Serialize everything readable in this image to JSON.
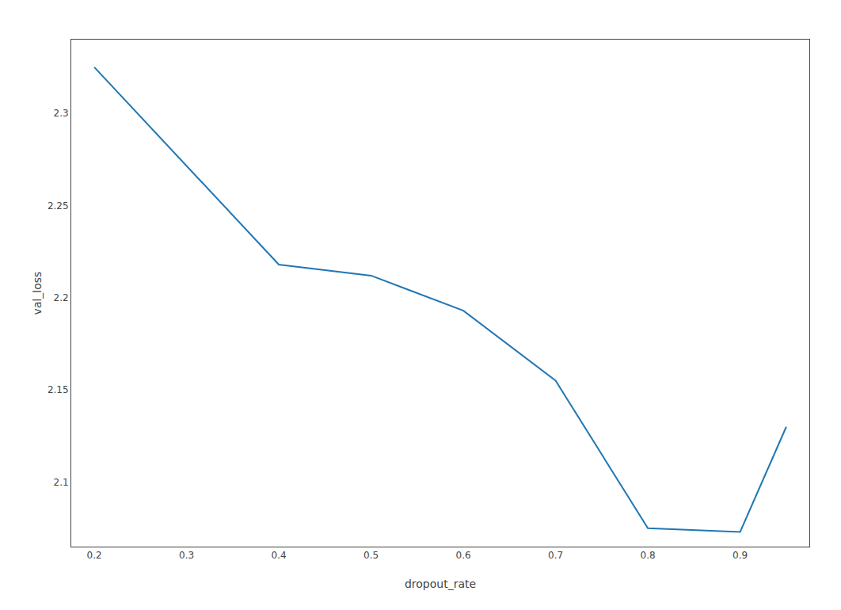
{
  "chart_data": {
    "type": "line",
    "x": [
      0.2,
      0.4,
      0.5,
      0.6,
      0.7,
      0.8,
      0.9,
      0.95
    ],
    "values": [
      2.325,
      2.218,
      2.212,
      2.193,
      2.155,
      2.075,
      2.073,
      2.13
    ],
    "color": "#1f77b4",
    "xlabel": "dropout_rate",
    "ylabel": "val_loss",
    "xlim": [
      0.175,
      0.975
    ],
    "ylim": [
      2.065,
      2.34
    ],
    "xticks": [
      0.2,
      0.3,
      0.4,
      0.5,
      0.6,
      0.7,
      0.8,
      0.9
    ],
    "yticks": [
      2.1,
      2.15,
      2.2,
      2.25,
      2.3
    ],
    "grid": false
  }
}
